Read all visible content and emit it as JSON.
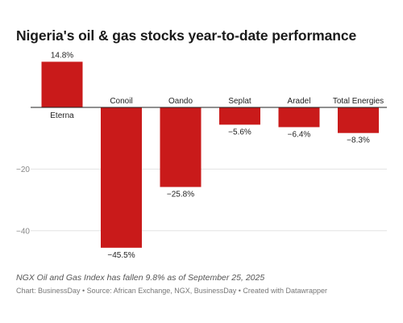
{
  "chart_data": {
    "type": "bar",
    "title": "Nigeria's oil & gas stocks year-to-date performance",
    "categories": [
      "Eterna",
      "Conoil",
      "Oando",
      "Seplat",
      "Aradel",
      "Total Energies"
    ],
    "values": [
      14.8,
      -45.5,
      -25.8,
      -5.6,
      -6.4,
      -8.3
    ],
    "value_labels": [
      "14.8%",
      "−45.5%",
      "−25.8%",
      "−5.6%",
      "−6.4%",
      "−8.3%"
    ],
    "y_ticks": [
      -20,
      -40
    ],
    "y_tick_labels": [
      "−20",
      "−40"
    ],
    "ylim": [
      -48,
      17
    ],
    "grid": true,
    "bar_color": "#c91a1a",
    "note": "NGX Oil and Gas Index has fallen 9.8% as of September 25, 2025",
    "source": "Chart: BusinessDay • Source: African Exchange, NGX, BusinessDay • Created with Datawrapper"
  }
}
